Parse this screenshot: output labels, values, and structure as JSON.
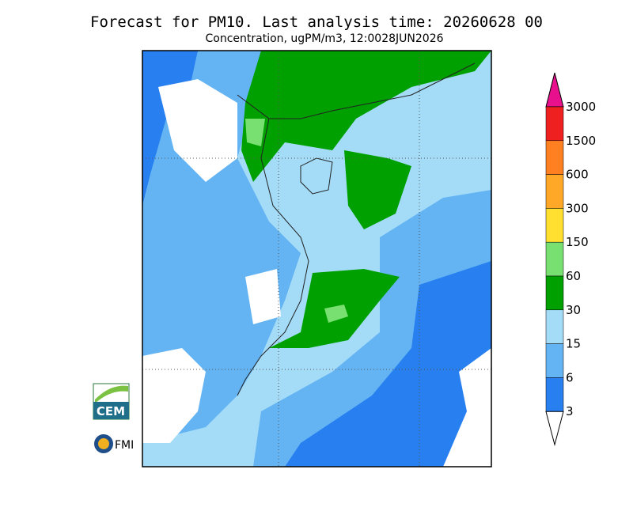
{
  "header": {
    "title": "Forecast for PM10. Last analysis time: 20260628 00",
    "subtitle": "Concentration, ugPM/m3, 12:0028JUN2026"
  },
  "legend": {
    "top_color": "#e8108c",
    "bottom_color": "#ffffff",
    "levels": [
      {
        "label": "3000",
        "color": "#ee2020"
      },
      {
        "label": "1500",
        "color": "#ff8020"
      },
      {
        "label": "600",
        "color": "#ffa828"
      },
      {
        "label": "300",
        "color": "#ffe030"
      },
      {
        "label": "150",
        "color": "#78e070"
      },
      {
        "label": "60",
        "color": "#00a000"
      },
      {
        "label": "30",
        "color": "#a4dcf8"
      },
      {
        "label": "15",
        "color": "#64b4f4"
      },
      {
        "label": "6",
        "color": "#2880f0"
      },
      {
        "label": "3",
        "color": null
      }
    ]
  },
  "logos": {
    "cem": "CEM",
    "fmi": "FMI"
  }
}
